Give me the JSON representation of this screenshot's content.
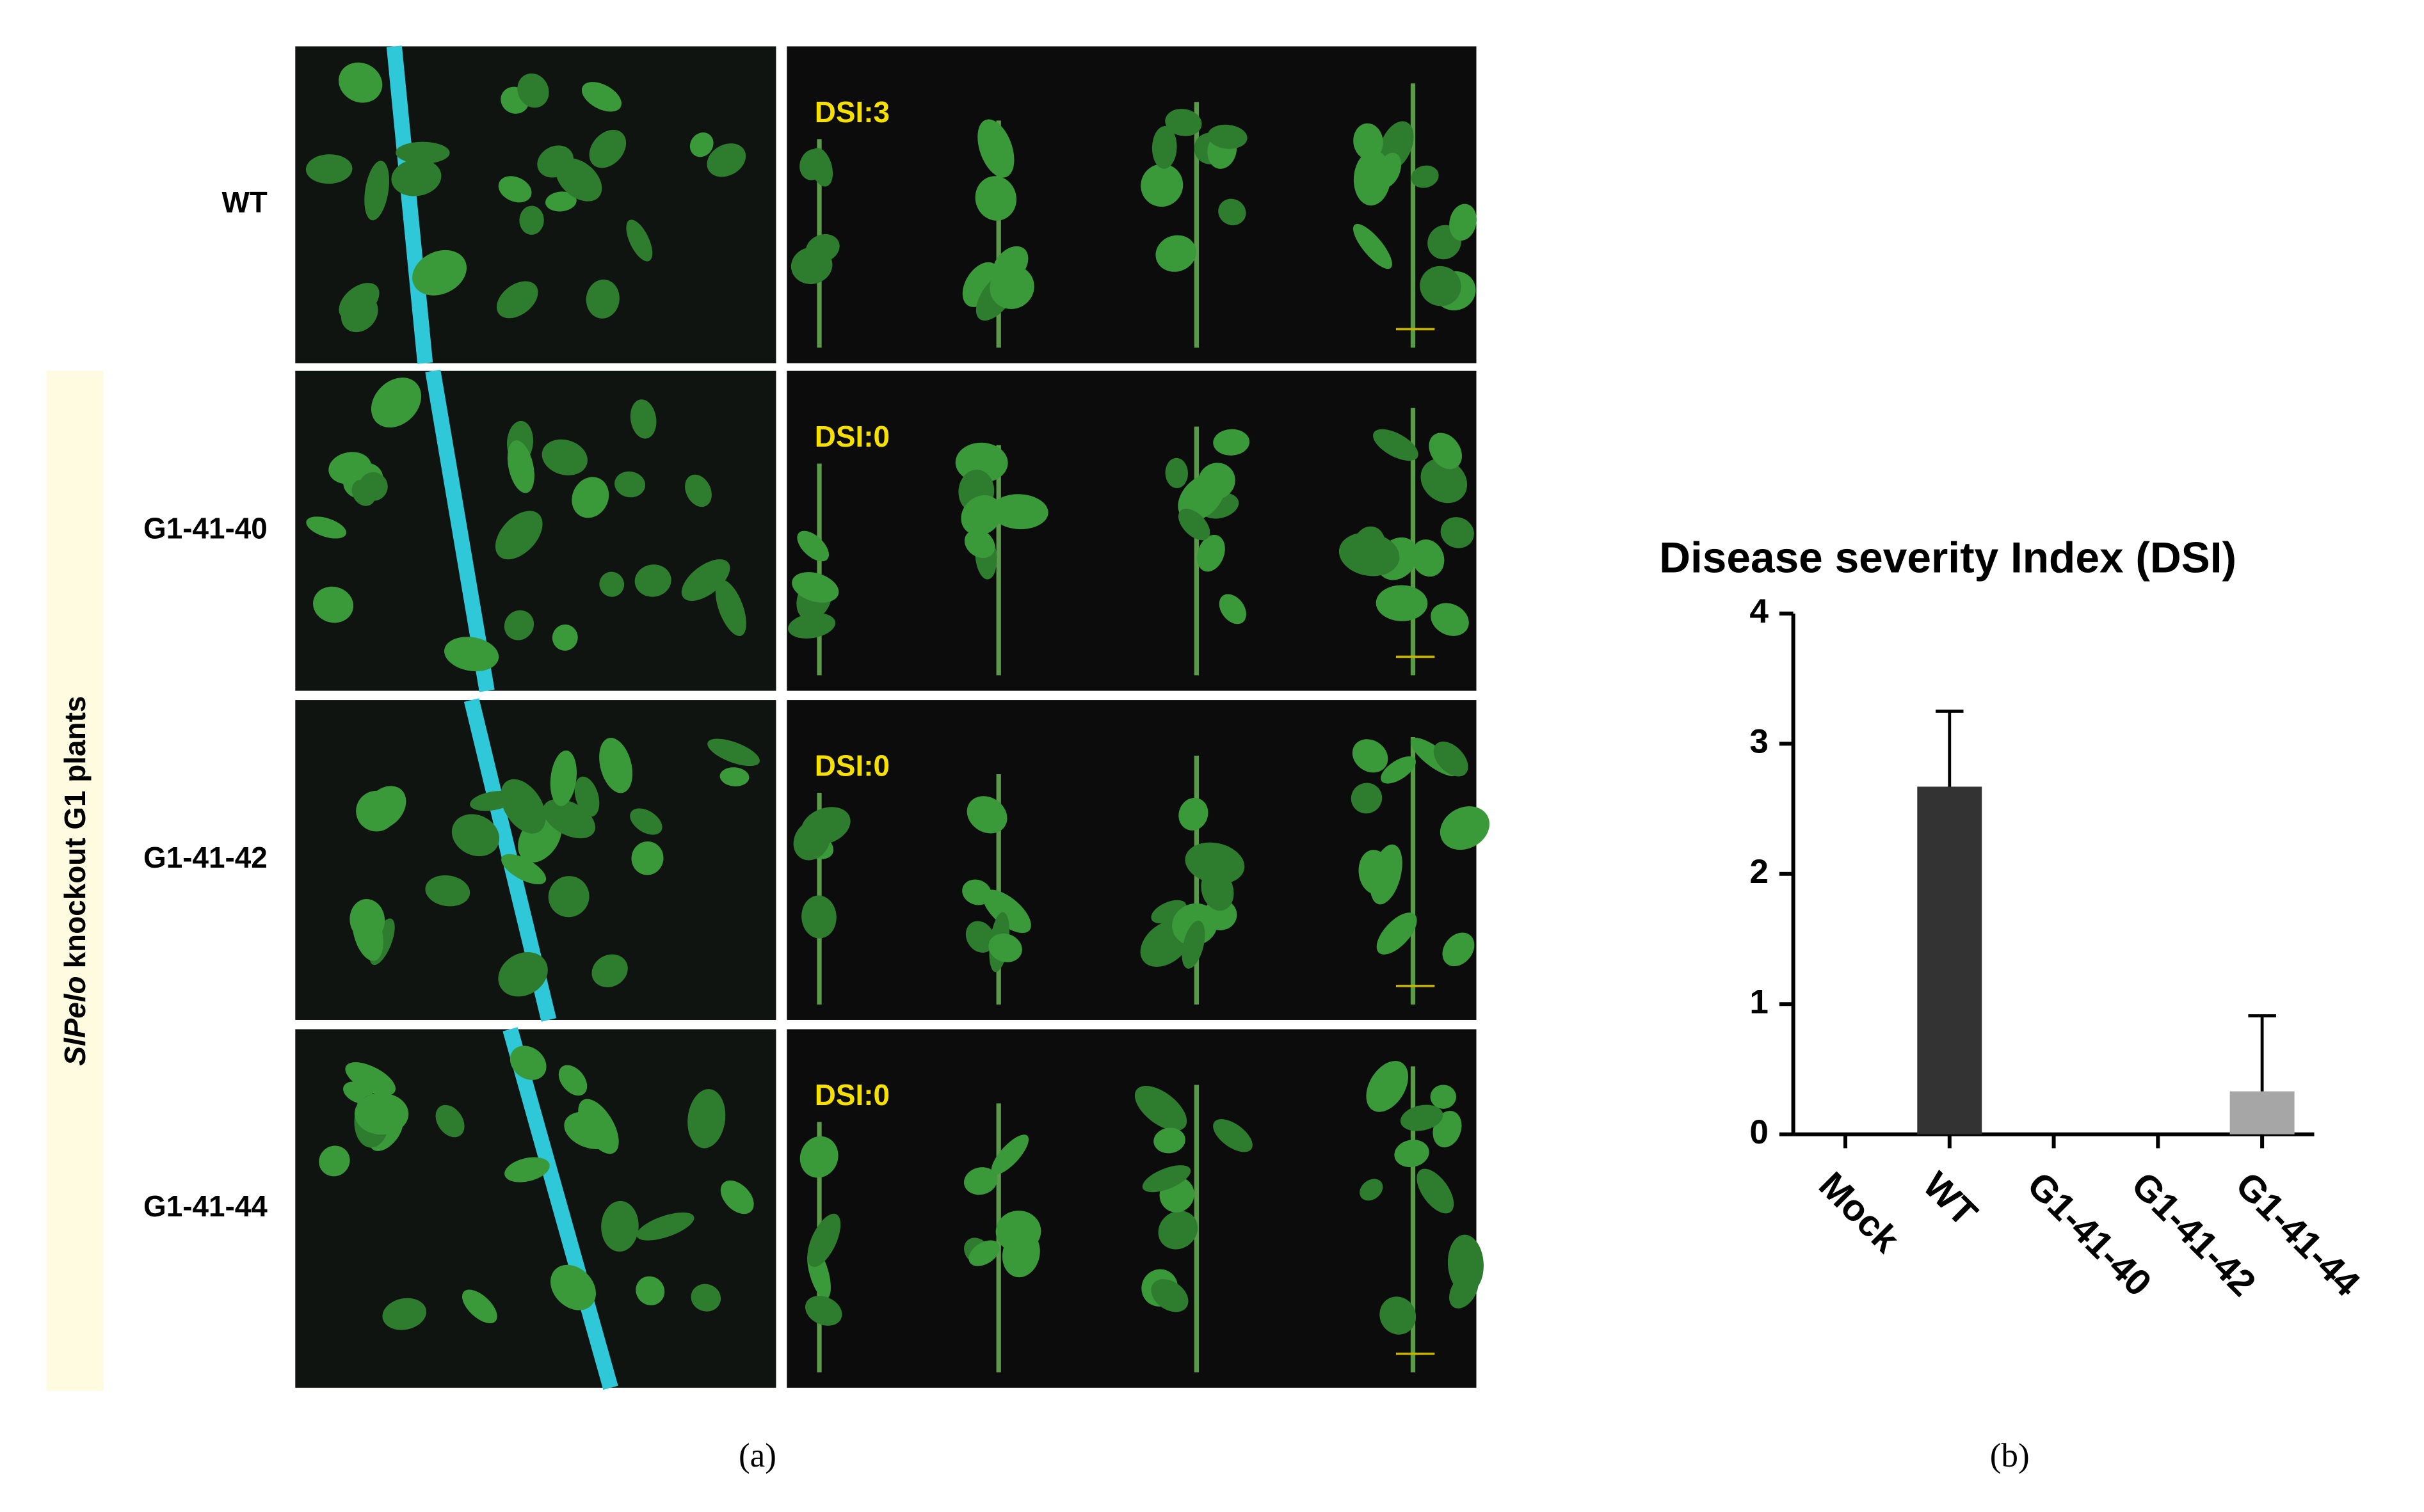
{
  "panel_a": {
    "group_label": {
      "italic": "SlPelo",
      "rest": "knockout G1 plants"
    },
    "rows": [
      {
        "label": "WT",
        "dsi": "DSI:3"
      },
      {
        "label": "G1-41-40",
        "dsi": "DSI:0"
      },
      {
        "label": "G1-41-42",
        "dsi": "DSI:0"
      },
      {
        "label": "G1-41-44",
        "dsi": "DSI:0"
      }
    ],
    "caption": "(a)"
  },
  "chart_data": {
    "type": "bar",
    "title": "Disease severity Index (DSI)",
    "categories": [
      "Mock",
      "WT",
      "G1-41-40",
      "G1-41-42",
      "G1-41-44"
    ],
    "values": [
      0,
      2.67,
      0,
      0,
      0.33
    ],
    "errors": [
      null,
      0.58,
      null,
      null,
      0.58
    ],
    "colors": [
      "#333333",
      "#333333",
      "#333333",
      "#333333",
      "#a6a6a6"
    ],
    "ylim": [
      0,
      4
    ],
    "yticks": [
      0,
      1,
      2,
      3,
      4
    ],
    "grid": false
  },
  "panel_b": {
    "caption": "(b)"
  }
}
